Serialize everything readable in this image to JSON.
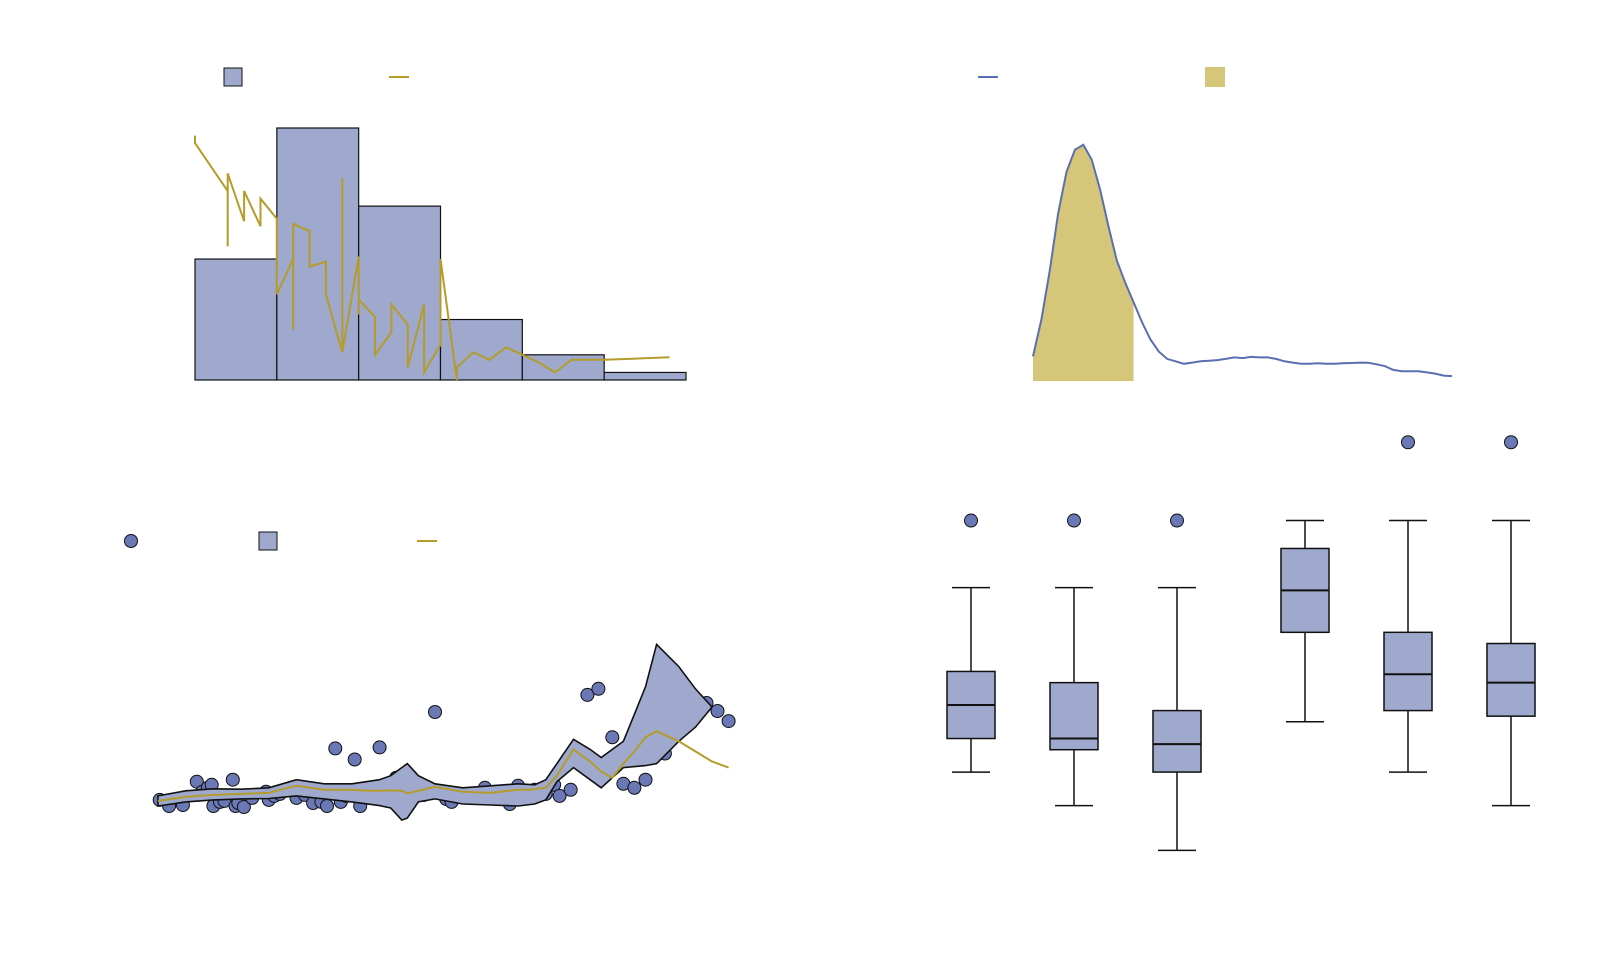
{
  "colors": {
    "bar_fill": "#9ea9cd",
    "outline": "#111111",
    "gold": "#b59c2a",
    "gold_fill": "#d5c67a",
    "blue_line": "#5a6fb0",
    "point_fill": "#6a79b5",
    "band_fill": "#9ea9cd"
  },
  "chart_data": [
    {
      "type": "bar",
      "panel": "top-left",
      "legend": {
        "placement": "top",
        "entries": [
          {
            "marker": "box",
            "label": ""
          },
          {
            "marker": "line",
            "label": ""
          }
        ]
      },
      "xlim": [
        0,
        30
      ],
      "ylim": [
        0,
        50
      ],
      "bins": [
        {
          "x0": 0,
          "x1": 5,
          "count": 24
        },
        {
          "x0": 5,
          "x1": 10,
          "count": 50
        },
        {
          "x0": 10,
          "x1": 15,
          "count": 34.5
        },
        {
          "x0": 15,
          "x1": 20,
          "count": 12
        },
        {
          "x0": 20,
          "x1": 25,
          "count": 5
        },
        {
          "x0": 25,
          "x1": 30,
          "count": 1.5
        }
      ],
      "line": {
        "x": [
          0,
          0,
          2,
          2,
          2,
          3,
          3,
          4,
          4,
          5,
          5,
          6,
          6,
          6,
          7,
          7,
          8,
          8,
          9,
          9,
          9,
          10,
          10,
          10,
          11,
          11,
          12,
          12,
          13,
          13,
          14,
          14,
          15,
          15,
          16,
          16,
          17,
          18,
          19,
          20,
          21,
          22,
          23,
          25,
          29
        ],
        "y": [
          48.5,
          47,
          37.5,
          26.5,
          41,
          31.5,
          37.5,
          30.5,
          36,
          32,
          17,
          24,
          10,
          31,
          29.5,
          22.5,
          23.5,
          17,
          5.5,
          40,
          5.5,
          24.5,
          13,
          16,
          12.5,
          5,
          9.5,
          15,
          11,
          2.5,
          15,
          1.5,
          7,
          24,
          0,
          2.5,
          5.5,
          4,
          6.5,
          5,
          3.5,
          1.5,
          4,
          4,
          4.5
        ]
      }
    },
    {
      "type": "line",
      "panel": "top-right",
      "legend": {
        "placement": "top",
        "entries": [
          {
            "marker": "line",
            "label": ""
          },
          {
            "marker": "box",
            "label": ""
          }
        ]
      },
      "xlim": [
        0,
        50
      ],
      "ylim": [
        0,
        100
      ],
      "shaded_x_range": [
        0,
        12
      ],
      "x": [
        0,
        1,
        2,
        3,
        4,
        5,
        6,
        7,
        8,
        9,
        10,
        11,
        12,
        13,
        14,
        15,
        16,
        17,
        18,
        19,
        20,
        21,
        22,
        23,
        24,
        25,
        26,
        27,
        28,
        29,
        30,
        31,
        32,
        33,
        34,
        35,
        36,
        37,
        38,
        39,
        40,
        41,
        42,
        43,
        44,
        45,
        46,
        47,
        48,
        49,
        50
      ],
      "y": [
        10,
        25,
        45,
        68,
        85,
        94,
        96,
        90,
        78,
        63,
        49,
        40,
        32,
        24,
        17,
        12,
        9,
        8,
        7,
        7.5,
        8,
        8.2,
        8.5,
        9,
        9.6,
        9.3,
        9.8,
        9.6,
        9.6,
        9,
        8,
        7.5,
        7,
        7,
        7.2,
        7,
        7,
        7.2,
        7.3,
        7.5,
        7.4,
        6.8,
        6,
        4.5,
        4,
        4,
        4,
        3.5,
        3,
        2.2,
        2
      ]
    },
    {
      "type": "scatter",
      "panel": "bottom-left",
      "legend": {
        "placement": "top-left",
        "entries": [
          {
            "marker": "point",
            "label": ""
          },
          {
            "marker": "box",
            "label": ""
          },
          {
            "marker": "line",
            "label": ""
          }
        ]
      },
      "xlim": [
        0,
        100
      ],
      "ylim": [
        0,
        100
      ],
      "points": [
        [
          0.3,
          4
        ],
        [
          2,
          1
        ],
        [
          4.5,
          1.5
        ],
        [
          7,
          13
        ],
        [
          8,
          8
        ],
        [
          9,
          10
        ],
        [
          9.7,
          11.5
        ],
        [
          10,
          1
        ],
        [
          11.2,
          3
        ],
        [
          12,
          3.5
        ],
        [
          13.5,
          14
        ],
        [
          14,
          1
        ],
        [
          14.5,
          2.5
        ],
        [
          15.5,
          0.5
        ],
        [
          17,
          5
        ],
        [
          19.5,
          8
        ],
        [
          20,
          4
        ],
        [
          21,
          6
        ],
        [
          22,
          7
        ],
        [
          24,
          10
        ],
        [
          25,
          5
        ],
        [
          26.5,
          6.5
        ],
        [
          28,
          2.5
        ],
        [
          29.5,
          3
        ],
        [
          30.5,
          1
        ],
        [
          32,
          29.5
        ],
        [
          33,
          3
        ],
        [
          34,
          6
        ],
        [
          35.5,
          24
        ],
        [
          36.5,
          1
        ],
        [
          38,
          9
        ],
        [
          39,
          6
        ],
        [
          40,
          30
        ],
        [
          43,
          15
        ],
        [
          45,
          3
        ],
        [
          46,
          8
        ],
        [
          48,
          6.5
        ],
        [
          50,
          47.5
        ],
        [
          52,
          4.5
        ],
        [
          53,
          3
        ],
        [
          55,
          6
        ],
        [
          57.5,
          7
        ],
        [
          59,
          10
        ],
        [
          61.5,
          7
        ],
        [
          63.5,
          2
        ],
        [
          65,
          11
        ],
        [
          66,
          8
        ],
        [
          68,
          9
        ],
        [
          70,
          7
        ],
        [
          71.5,
          11.5
        ],
        [
          72.5,
          6
        ],
        [
          74.5,
          9
        ],
        [
          77.5,
          56
        ],
        [
          79.5,
          59
        ],
        [
          82,
          35
        ],
        [
          84,
          12
        ],
        [
          86,
          10
        ],
        [
          88,
          14
        ],
        [
          90,
          31
        ],
        [
          91.5,
          27
        ],
        [
          94,
          57
        ],
        [
          99,
          52
        ],
        [
          101,
          48
        ],
        [
          103,
          43
        ]
      ],
      "band": {
        "x": [
          0,
          5,
          10,
          15,
          20,
          25,
          30,
          35,
          40,
          42,
          44,
          45,
          47,
          50,
          55,
          60,
          65,
          68,
          70,
          72,
          75,
          78,
          80,
          84,
          88,
          90,
          94,
          97,
          100
        ],
        "upper": [
          6,
          8.5,
          9.5,
          9.3,
          10,
          14,
          12,
          12,
          14,
          16,
          20,
          22,
          16,
          12,
          10,
          11,
          12,
          11.5,
          14,
          22,
          34,
          29,
          25,
          33,
          60,
          81,
          70,
          59,
          50
        ],
        "lower": [
          1,
          3,
          4,
          4.5,
          4.7,
          6,
          4.5,
          3,
          1.2,
          0,
          -6,
          -5,
          3,
          4.5,
          2,
          1.5,
          1,
          2,
          4,
          13,
          20,
          14,
          10,
          20,
          21,
          22,
          33,
          40,
          50
        ]
      },
      "line": {
        "x": [
          0,
          5,
          10,
          15,
          20,
          22,
          25,
          30,
          35,
          38,
          40,
          42,
          44,
          45,
          47,
          50,
          55,
          60,
          65,
          67,
          70,
          72,
          75,
          78,
          80,
          82,
          84,
          86,
          88,
          90,
          94,
          97,
          100,
          103
        ],
        "y": [
          3.5,
          5.5,
          6.5,
          7,
          7.5,
          9,
          11,
          9,
          9,
          8.5,
          8.5,
          8.7,
          8.5,
          7.3,
          8.5,
          10.5,
          8,
          7.5,
          9,
          9,
          10,
          16,
          29,
          23,
          18,
          15,
          22,
          28,
          35,
          38,
          33,
          28,
          23,
          20
        ]
      }
    },
    {
      "type": "box",
      "panel": "bottom-right",
      "ylim": [
        0,
        100
      ],
      "boxes": [
        {
          "whisker_low": 27,
          "q1": 33,
          "median": 39,
          "q3": 45,
          "whisker_high": 60,
          "outliers": [
            72
          ]
        },
        {
          "whisker_low": 21,
          "q1": 31,
          "median": 33,
          "q3": 43,
          "whisker_high": 60,
          "outliers": [
            72
          ]
        },
        {
          "whisker_low": 13,
          "q1": 27,
          "median": 32,
          "q3": 38,
          "whisker_high": 60,
          "outliers": [
            72
          ]
        },
        {
          "whisker_low": 36,
          "q1": 52,
          "median": 59.5,
          "q3": 67,
          "whisker_high": 72,
          "outliers": []
        },
        {
          "whisker_low": 27,
          "q1": 38,
          "median": 44.5,
          "q3": 52,
          "whisker_high": 72,
          "outliers": [
            86
          ]
        },
        {
          "whisker_low": 21,
          "q1": 37,
          "median": 43,
          "q3": 50,
          "whisker_high": 72,
          "outliers": [
            86
          ]
        }
      ]
    }
  ]
}
